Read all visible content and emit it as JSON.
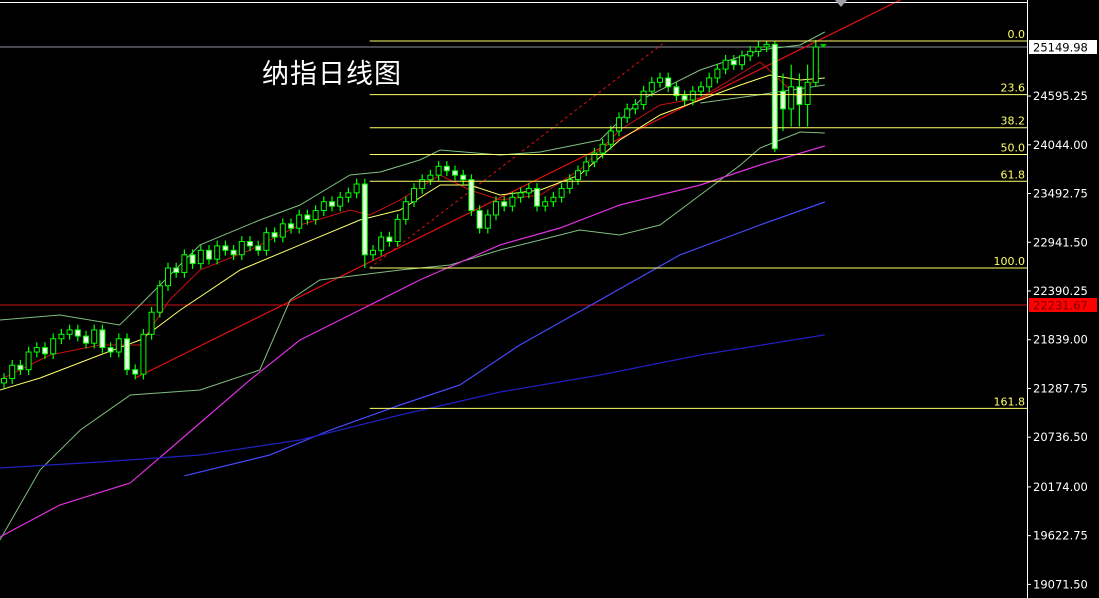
{
  "title": "纳指日线图",
  "chart_data": {
    "type": "candlestick",
    "title": "纳指日线图",
    "ylim": [
      18900,
      25680
    ],
    "y_ticks": [
      "25149.98",
      "24595.25",
      "24044.00",
      "23492.75",
      "22941.50",
      "22390.25",
      "21839.00",
      "21287.75",
      "20736.50",
      "20174.00",
      "19622.75",
      "19071.50"
    ],
    "y_tick_values": [
      25149.98,
      24595.25,
      24044.0,
      23492.75,
      22941.5,
      22390.25,
      21839.0,
      21287.75,
      20736.5,
      20174.0,
      19622.75,
      19071.5
    ],
    "current_price": {
      "label": "25149.98",
      "value": 25149.98,
      "color": "#ffffff"
    },
    "red_level": {
      "label": "22231.67",
      "value": 22231.67,
      "color": "#ff0000"
    },
    "fibonacci": {
      "color": "#ffff66",
      "start_index": 44.6,
      "levels": [
        {
          "label": "0.0",
          "value": 25218
        },
        {
          "label": "23.6",
          "value": 24612
        },
        {
          "label": "38.2",
          "value": 24237
        },
        {
          "label": "50.0",
          "value": 23934
        },
        {
          "label": "61.8",
          "value": 23631
        },
        {
          "label": "100.0",
          "value": 22650
        },
        {
          "label": "161.8",
          "value": 21063
        }
      ]
    },
    "candle_colors": {
      "up_body": "#000000",
      "down_body": "#e8ffe0",
      "outline": "#00ff00"
    },
    "candles": [
      [
        21350,
        21460,
        21290,
        21400
      ],
      [
        21400,
        21610,
        21340,
        21550
      ],
      [
        21550,
        21610,
        21440,
        21500
      ],
      [
        21500,
        21760,
        21440,
        21700
      ],
      [
        21700,
        21810,
        21640,
        21750
      ],
      [
        21750,
        21810,
        21620,
        21680
      ],
      [
        21680,
        21910,
        21620,
        21850
      ],
      [
        21850,
        21960,
        21790,
        21900
      ],
      [
        21900,
        22010,
        21840,
        21950
      ],
      [
        21950,
        22010,
        21820,
        21880
      ],
      [
        21880,
        21940,
        21740,
        21800
      ],
      [
        21800,
        22010,
        21740,
        21950
      ],
      [
        21950,
        22010,
        21690,
        21750
      ],
      [
        21750,
        21810,
        21640,
        21700
      ],
      [
        21700,
        21910,
        21640,
        21850
      ],
      [
        21850,
        21910,
        21440,
        21500
      ],
      [
        21500,
        21560,
        21390,
        21450
      ],
      [
        21450,
        21960,
        21390,
        21900
      ],
      [
        21900,
        22210,
        21840,
        22150
      ],
      [
        22150,
        22510,
        22090,
        22450
      ],
      [
        22450,
        22710,
        22390,
        22650
      ],
      [
        22650,
        22710,
        22540,
        22600
      ],
      [
        22600,
        22860,
        22540,
        22800
      ],
      [
        22800,
        22860,
        22640,
        22700
      ],
      [
        22700,
        22910,
        22640,
        22850
      ],
      [
        22850,
        22910,
        22690,
        22750
      ],
      [
        22750,
        22960,
        22690,
        22900
      ],
      [
        22900,
        22960,
        22790,
        22850
      ],
      [
        22850,
        22910,
        22740,
        22800
      ],
      [
        22800,
        23010,
        22740,
        22950
      ],
      [
        22950,
        23010,
        22840,
        22900
      ],
      [
        22900,
        22960,
        22790,
        22850
      ],
      [
        22850,
        23110,
        22790,
        23050
      ],
      [
        23050,
        23110,
        22940,
        23000
      ],
      [
        23000,
        23210,
        22940,
        23150
      ],
      [
        23150,
        23210,
        23040,
        23100
      ],
      [
        23100,
        23310,
        23040,
        23250
      ],
      [
        23250,
        23310,
        23140,
        23200
      ],
      [
        23200,
        23360,
        23140,
        23300
      ],
      [
        23300,
        23460,
        23240,
        23400
      ],
      [
        23400,
        23460,
        23290,
        23350
      ],
      [
        23350,
        23510,
        23290,
        23450
      ],
      [
        23450,
        23560,
        23390,
        23500
      ],
      [
        23500,
        23660,
        23440,
        23600
      ],
      [
        23600,
        23660,
        22650,
        22800
      ],
      [
        22800,
        22910,
        22740,
        22850
      ],
      [
        22850,
        23060,
        22790,
        23000
      ],
      [
        23000,
        23060,
        22890,
        22950
      ],
      [
        22950,
        23260,
        22890,
        23200
      ],
      [
        23200,
        23460,
        23140,
        23400
      ],
      [
        23400,
        23610,
        23340,
        23550
      ],
      [
        23550,
        23710,
        23490,
        23650
      ],
      [
        23650,
        23760,
        23590,
        23700
      ],
      [
        23700,
        23860,
        23640,
        23800
      ],
      [
        23800,
        23860,
        23690,
        23750
      ],
      [
        23750,
        23810,
        23640,
        23700
      ],
      [
        23700,
        23760,
        23590,
        23650
      ],
      [
        23650,
        23710,
        23240,
        23300
      ],
      [
        23300,
        23360,
        23040,
        23100
      ],
      [
        23100,
        23310,
        23040,
        23250
      ],
      [
        23250,
        23460,
        23190,
        23400
      ],
      [
        23400,
        23460,
        23290,
        23350
      ],
      [
        23350,
        23510,
        23290,
        23450
      ],
      [
        23450,
        23560,
        23390,
        23500
      ],
      [
        23500,
        23610,
        23440,
        23550
      ],
      [
        23550,
        23610,
        23290,
        23350
      ],
      [
        23350,
        23460,
        23290,
        23400
      ],
      [
        23400,
        23510,
        23340,
        23450
      ],
      [
        23450,
        23610,
        23390,
        23550
      ],
      [
        23550,
        23710,
        23490,
        23650
      ],
      [
        23650,
        23810,
        23590,
        23750
      ],
      [
        23750,
        23910,
        23690,
        23850
      ],
      [
        23850,
        24010,
        23790,
        23950
      ],
      [
        23950,
        24110,
        23890,
        24050
      ],
      [
        24050,
        24260,
        23990,
        24200
      ],
      [
        24200,
        24410,
        24140,
        24350
      ],
      [
        24350,
        24510,
        24290,
        24450
      ],
      [
        24450,
        24560,
        24390,
        24500
      ],
      [
        24500,
        24710,
        24440,
        24650
      ],
      [
        24650,
        24810,
        24590,
        24750
      ],
      [
        24750,
        24860,
        24690,
        24800
      ],
      [
        24800,
        24860,
        24640,
        24700
      ],
      [
        24700,
        24760,
        24540,
        24600
      ],
      [
        24600,
        24660,
        24490,
        24550
      ],
      [
        24550,
        24710,
        24490,
        24650
      ],
      [
        24650,
        24760,
        24590,
        24700
      ],
      [
        24700,
        24860,
        24640,
        24800
      ],
      [
        24800,
        24960,
        24740,
        24900
      ],
      [
        24900,
        25060,
        24840,
        25000
      ],
      [
        25000,
        25060,
        24890,
        24950
      ],
      [
        24950,
        25110,
        24890,
        25050
      ],
      [
        25050,
        25160,
        24990,
        25100
      ],
      [
        25100,
        25210,
        25040,
        25150
      ],
      [
        25150,
        25218,
        25090,
        25180
      ],
      [
        25180,
        25218,
        23960,
        24000
      ],
      [
        24650,
        24850,
        24200,
        24450
      ],
      [
        24450,
        24950,
        24250,
        24700
      ],
      [
        24700,
        24850,
        24250,
        24500
      ],
      [
        24500,
        24950,
        24250,
        24750
      ],
      [
        24750,
        25230,
        24700,
        25150
      ]
    ],
    "lines": [
      {
        "id": "trendline",
        "color": "#e01010",
        "width": 1.2,
        "points": [
          [
            16,
            21406
          ],
          [
            109.3,
            25682
          ]
        ]
      },
      {
        "id": "trendline-dashed",
        "color": "#e01010",
        "width": 1,
        "dash": true,
        "points": [
          [
            44.6,
            22650
          ],
          [
            80.6,
            25207
          ]
        ]
      },
      {
        "id": "ma-short",
        "color": "#c81010",
        "width": 1,
        "points": [
          [
            -0.5,
            21384
          ],
          [
            5.6,
            21666
          ],
          [
            11.7,
            21779
          ],
          [
            16.6,
            21779
          ],
          [
            20.2,
            22288
          ],
          [
            23.9,
            22628
          ],
          [
            30,
            22854
          ],
          [
            36.1,
            23137
          ],
          [
            42.2,
            23306
          ],
          [
            44.6,
            23250
          ],
          [
            48.3,
            23420
          ],
          [
            53.2,
            23702
          ],
          [
            56.8,
            23533
          ],
          [
            60.5,
            23420
          ],
          [
            65.4,
            23476
          ],
          [
            70.2,
            23759
          ],
          [
            75.1,
            24211
          ],
          [
            80,
            24494
          ],
          [
            84.9,
            24573
          ],
          [
            92.2,
            24980
          ],
          [
            94,
            24833
          ],
          [
            97.1,
            24551
          ],
          [
            99.5,
            24890
          ]
        ]
      },
      {
        "id": "ma-mid",
        "color": "#ffff66",
        "width": 1,
        "points": [
          [
            -0.5,
            21270
          ],
          [
            4.4,
            21406
          ],
          [
            11.7,
            21666
          ],
          [
            16.6,
            21836
          ],
          [
            21.5,
            22175
          ],
          [
            28.8,
            22628
          ],
          [
            36.1,
            22911
          ],
          [
            43.4,
            23193
          ],
          [
            48.3,
            23306
          ],
          [
            53.2,
            23589
          ],
          [
            56.8,
            23589
          ],
          [
            60.5,
            23476
          ],
          [
            65.4,
            23533
          ],
          [
            70.2,
            23702
          ],
          [
            75.1,
            24098
          ],
          [
            80,
            24381
          ],
          [
            84.9,
            24551
          ],
          [
            89.8,
            24720
          ],
          [
            93.4,
            24833
          ],
          [
            97.1,
            24777
          ],
          [
            100.1,
            24799
          ]
        ]
      },
      {
        "id": "bollinger-upper",
        "color": "#7fbf7f",
        "width": 1,
        "points": [
          [
            -0.5,
            22062
          ],
          [
            6.8,
            22119
          ],
          [
            14.1,
            22006
          ],
          [
            16.6,
            22232
          ],
          [
            23.9,
            22911
          ],
          [
            31.2,
            23193
          ],
          [
            36.1,
            23363
          ],
          [
            42.2,
            23702
          ],
          [
            45.9,
            23736
          ],
          [
            50.7,
            23872
          ],
          [
            53.2,
            23985
          ],
          [
            60.5,
            23928
          ],
          [
            65.4,
            23962
          ],
          [
            72.7,
            24098
          ],
          [
            77.6,
            24551
          ],
          [
            84.9,
            24890
          ],
          [
            92.2,
            25116
          ],
          [
            97.1,
            25173
          ],
          [
            100.1,
            25320
          ]
        ]
      },
      {
        "id": "bollinger-lower",
        "color": "#7fbf7f",
        "width": 1,
        "points": [
          [
            -0.5,
            19574
          ],
          [
            4.4,
            20366
          ],
          [
            9.3,
            20818
          ],
          [
            15.4,
            21214
          ],
          [
            23.9,
            21270
          ],
          [
            31.2,
            21497
          ],
          [
            34.9,
            22288
          ],
          [
            38.5,
            22515
          ],
          [
            43.4,
            22571
          ],
          [
            48.3,
            22628
          ],
          [
            54.4,
            22684
          ],
          [
            60.5,
            22854
          ],
          [
            65.4,
            22967
          ],
          [
            70.2,
            23080
          ],
          [
            75.1,
            23024
          ],
          [
            80,
            23137
          ],
          [
            84.9,
            23476
          ],
          [
            89.8,
            23815
          ],
          [
            92.2,
            24008
          ],
          [
            97.1,
            24189
          ],
          [
            100.1,
            24177
          ]
        ]
      },
      {
        "id": "bollinger-mid-inner",
        "color": "#7fbf7f",
        "width": 1,
        "points": [
          [
            84.9,
            24517
          ],
          [
            92.2,
            24610
          ],
          [
            100.1,
            24720
          ]
        ]
      },
      {
        "id": "ma-magenta",
        "color": "#e030e0",
        "width": 1.2,
        "points": [
          [
            -0.5,
            19608
          ],
          [
            6.8,
            19970
          ],
          [
            15.4,
            20219
          ],
          [
            21.5,
            20705
          ],
          [
            30,
            21384
          ],
          [
            36.1,
            21836
          ],
          [
            43.4,
            22175
          ],
          [
            50.7,
            22515
          ],
          [
            60.5,
            22911
          ],
          [
            67.8,
            23103
          ],
          [
            75.1,
            23363
          ],
          [
            84.9,
            23589
          ],
          [
            92.2,
            23815
          ],
          [
            100.1,
            24030
          ]
        ]
      },
      {
        "id": "ma-blue",
        "color": "#4848ff",
        "width": 1.2,
        "points": [
          [
            22,
            20300
          ],
          [
            32.4,
            20535
          ],
          [
            39.8,
            20818
          ],
          [
            48.3,
            21101
          ],
          [
            55.6,
            21327
          ],
          [
            62.9,
            21779
          ],
          [
            72.7,
            22288
          ],
          [
            82.4,
            22797
          ],
          [
            92.2,
            23137
          ],
          [
            100.1,
            23397
          ]
        ]
      },
      {
        "id": "ma-navy",
        "color": "#2020c0",
        "width": 1.2,
        "points": [
          [
            -0.5,
            20388
          ],
          [
            11.7,
            20456
          ],
          [
            23.9,
            20535
          ],
          [
            36.1,
            20705
          ],
          [
            48.3,
            20988
          ],
          [
            60.5,
            21248
          ],
          [
            72.7,
            21440
          ],
          [
            84.9,
            21666
          ],
          [
            100.1,
            21893
          ]
        ]
      }
    ]
  }
}
